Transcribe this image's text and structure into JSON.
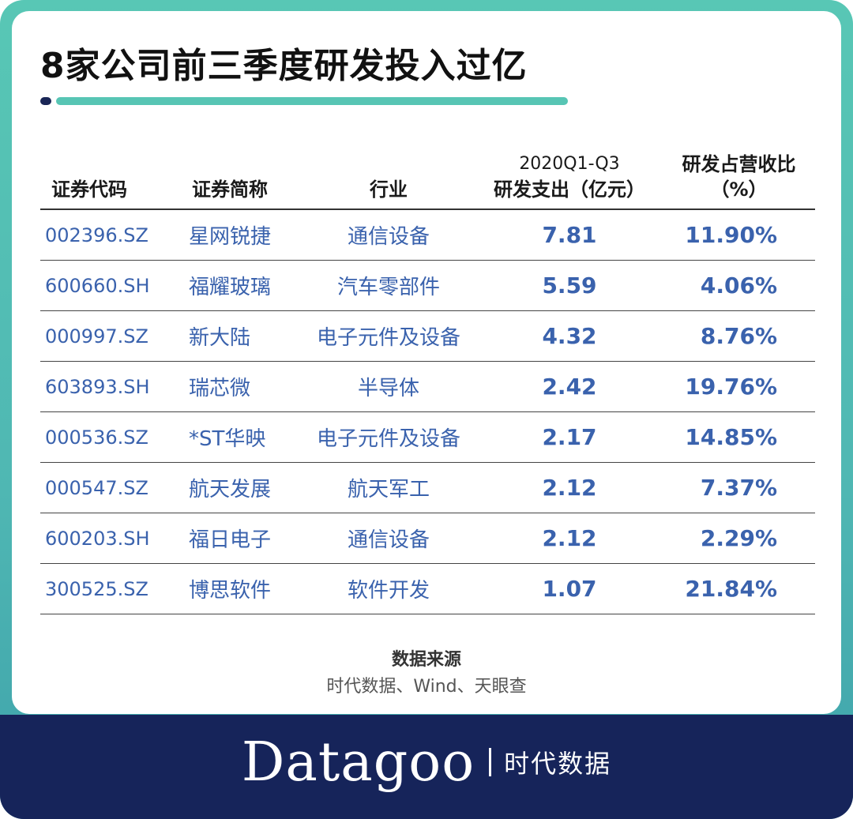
{
  "title": "8家公司前三季度研发投入过亿",
  "colors": {
    "frame": "#4fb7b3",
    "accent_bar": "#57c5b4",
    "navy": "#16245a",
    "cell_text": "#3a62ad"
  },
  "table": {
    "headers": {
      "code": "证券代码",
      "name": "证券简称",
      "industry": "行业",
      "expense_line1": "2020Q1-Q3",
      "expense_line2": "研发支出（亿元）",
      "ratio_line1": "研发占营收比",
      "ratio_line2": "（%）"
    },
    "rows": [
      {
        "code": "002396.SZ",
        "name": "星网锐捷",
        "industry": "通信设备",
        "expense": "7.81",
        "ratio": "11.90%"
      },
      {
        "code": "600660.SH",
        "name": "福耀玻璃",
        "industry": "汽车零部件",
        "expense": "5.59",
        "ratio": "4.06%"
      },
      {
        "code": "000997.SZ",
        "name": "新大陆",
        "industry": "电子元件及设备",
        "expense": "4.32",
        "ratio": "8.76%"
      },
      {
        "code": "603893.SH",
        "name": "瑞芯微",
        "industry": "半导体",
        "expense": "2.42",
        "ratio": "19.76%"
      },
      {
        "code": "000536.SZ",
        "name": "*ST华映",
        "industry": "电子元件及设备",
        "expense": "2.17",
        "ratio": "14.85%"
      },
      {
        "code": "000547.SZ",
        "name": "航天发展",
        "industry": "航天军工",
        "expense": "2.12",
        "ratio": "7.37%"
      },
      {
        "code": "600203.SH",
        "name": "福日电子",
        "industry": "通信设备",
        "expense": "2.12",
        "ratio": "2.29%"
      },
      {
        "code": "300525.SZ",
        "name": "博思软件",
        "industry": "软件开发",
        "expense": "1.07",
        "ratio": "21.84%"
      }
    ]
  },
  "source": {
    "label": "数据来源",
    "text": "时代数据、Wind、天眼查"
  },
  "footer": {
    "brand": "Datagoo",
    "brand_cn": "时代数据"
  }
}
